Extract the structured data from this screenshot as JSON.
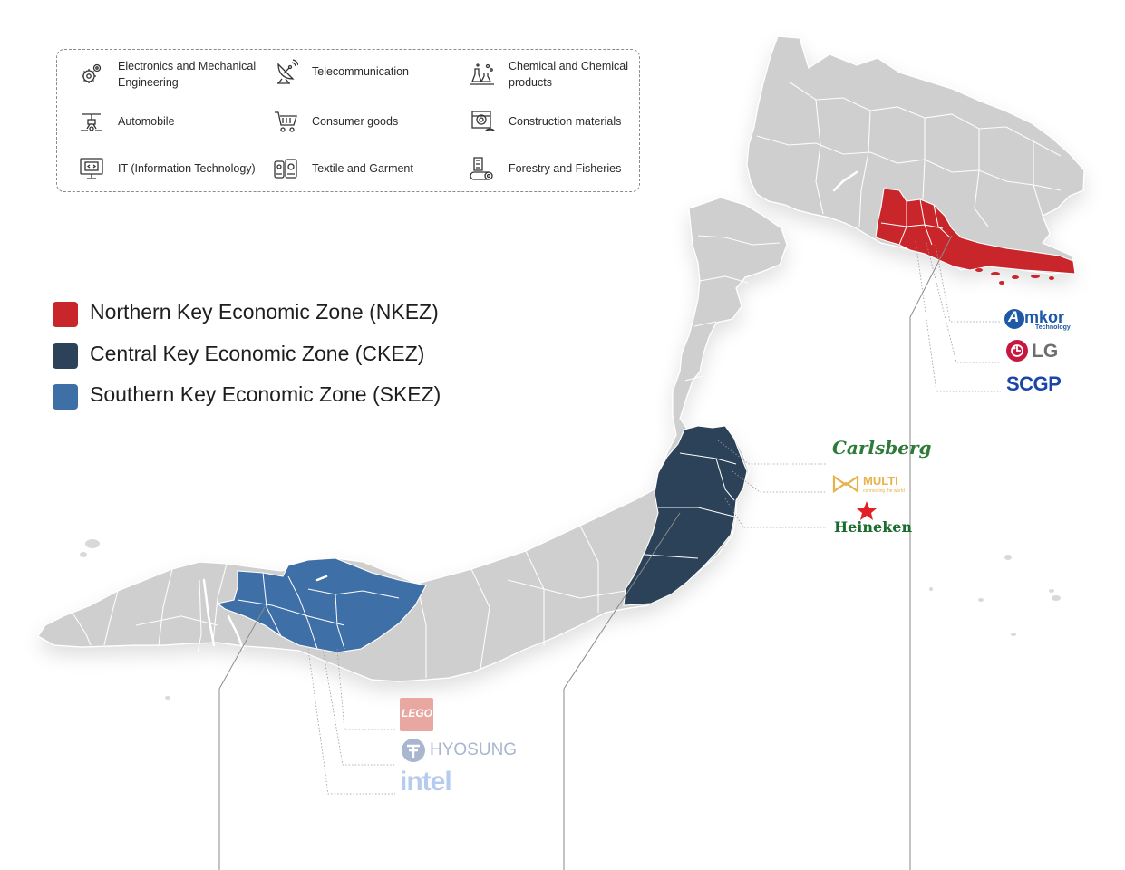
{
  "industries": [
    {
      "label": "Electronics and Mechanical Engineering",
      "icon": "gears-icon"
    },
    {
      "label": "Telecommunication",
      "icon": "satellite-dish-icon"
    },
    {
      "label": "Chemical and Chemical products",
      "icon": "chemical-flask-icon"
    },
    {
      "label": "Automobile",
      "icon": "robot-arm-icon"
    },
    {
      "label": "Consumer goods",
      "icon": "shopping-cart-icon"
    },
    {
      "label": "Construction materials",
      "icon": "cement-mixer-icon"
    },
    {
      "label": "IT (Information Technology)",
      "icon": "monitor-code-icon"
    },
    {
      "label": "Textile and Garment",
      "icon": "sewing-machine-icon"
    },
    {
      "label": "Forestry and Fisheries",
      "icon": "log-icon"
    }
  ],
  "legend": [
    {
      "label": "Northern Key Economic Zone (NKEZ)",
      "color": "#c8262b"
    },
    {
      "label": "Central Key Economic Zone (CKEZ)",
      "color": "#2c4258"
    },
    {
      "label": "Southern Key Economic Zone (SKEZ)",
      "color": "#3e6fa6"
    }
  ],
  "zones": {
    "base_color": "#cfcfcf",
    "border_color": "#ffffff"
  },
  "logos": {
    "northern": [
      {
        "name": "amkor",
        "main": "mkor",
        "initial": "A",
        "sub": "Technology",
        "color": "#1e58a6"
      },
      {
        "name": "lg",
        "main": "LG",
        "color": "#6e6e6e",
        "accent": "#c6173f"
      },
      {
        "name": "scgp",
        "main": "SCGP",
        "color": "#1a46a8"
      }
    ],
    "central": [
      {
        "name": "carlsberg",
        "main": "Carlsberg",
        "color": "#2f7a3b"
      },
      {
        "name": "multi",
        "main": "MULTI",
        "sub": "connecting the world",
        "color": "#e7b24a"
      },
      {
        "name": "heineken",
        "main": "Heineken",
        "color": "#1c6b2f",
        "accent": "#e21f26"
      }
    ],
    "southern": [
      {
        "name": "lego",
        "main": "LEGO",
        "color": "#e9a7a2"
      },
      {
        "name": "hyosung",
        "main": "HYOSUNG",
        "color": "#a8b6cf"
      },
      {
        "name": "intel",
        "main": "intel",
        "color": "#b6ccee"
      }
    ]
  }
}
